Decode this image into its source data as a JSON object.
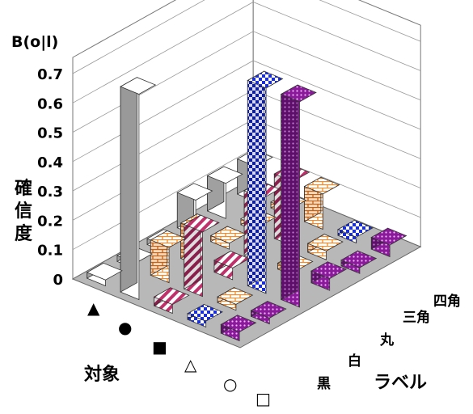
{
  "chart_data": {
    "type": "bar3d",
    "zlabel": "B(o|l)",
    "ylabel_vertical": [
      "確",
      "信",
      "度"
    ],
    "object_axis_label": "対象",
    "label_axis_label": "ラベル",
    "z_ticks": [
      "0",
      "0.1",
      "0.2",
      "0.3",
      "0.4",
      "0.5",
      "0.6",
      "0.7"
    ],
    "zlim": [
      0,
      0.7
    ],
    "objects": [
      "▲",
      "●",
      "■",
      "△",
      "○",
      "□"
    ],
    "labels": [
      "黒",
      "白",
      "丸",
      "三角",
      "四角"
    ],
    "values": [
      [
        0.02,
        0.7,
        0.03,
        0.02,
        0.03
      ],
      [
        0.02,
        0.12,
        0.22,
        0.02,
        0.02
      ],
      [
        0.02,
        0.12,
        0.04,
        0.7,
        0.7
      ],
      [
        0.12,
        0.02,
        0.22,
        0.02,
        0.04
      ],
      [
        0.12,
        0.02,
        0.22,
        0.03,
        0.02
      ],
      [
        0.12,
        0.02,
        0.12,
        0.02,
        0.04
      ]
    ],
    "colors": {
      "black_bar": "#999999",
      "white_bar": "#ffffff",
      "circle_stripe": "#c0306a",
      "triangle_check": "#1a2fd6",
      "square_dots": "#8a1a9a",
      "brick": "#f08a2a"
    },
    "grid": true
  }
}
